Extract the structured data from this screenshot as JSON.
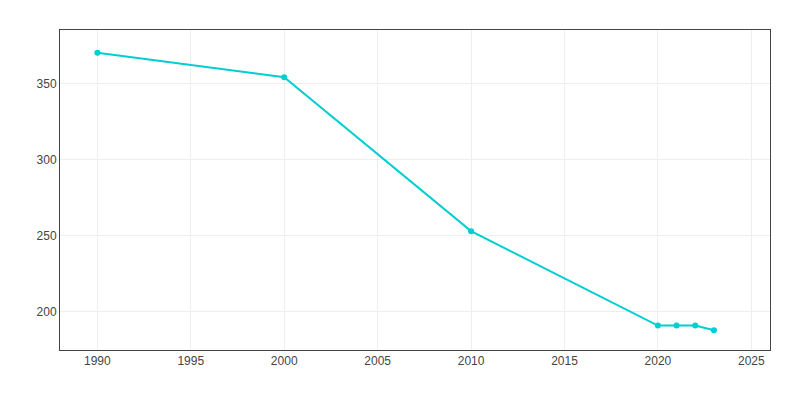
{
  "chart_data": {
    "type": "line",
    "x": [
      1990,
      2000,
      2010,
      2020,
      2021,
      2022,
      2023
    ],
    "values": [
      370,
      354,
      253,
      191,
      191,
      191,
      188
    ],
    "color": "#00CED1",
    "marker": "circle",
    "xlim": [
      1988,
      2026
    ],
    "ylim": [
      175,
      385
    ],
    "xticks": [
      1990,
      1995,
      2000,
      2005,
      2010,
      2015,
      2020,
      2025
    ],
    "yticks": [
      200,
      250,
      300,
      350
    ],
    "grid": true
  }
}
